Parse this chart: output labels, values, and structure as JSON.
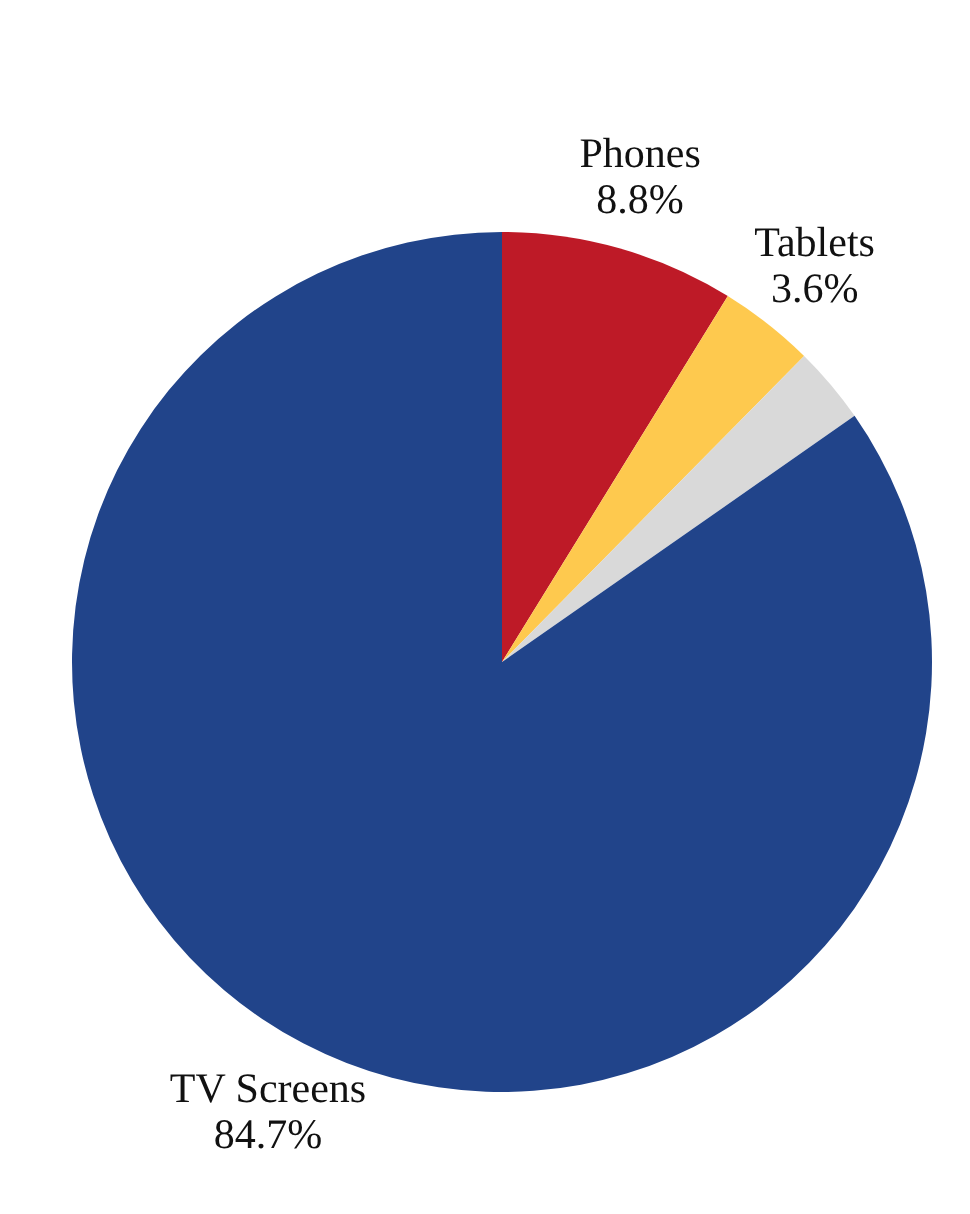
{
  "chart_data": {
    "type": "pie",
    "categories": [
      "Phones",
      "Tablets",
      null,
      "TV Screens"
    ],
    "values": [
      8.8,
      3.6,
      2.9,
      84.7
    ],
    "value_labels": [
      "8.8%",
      "3.6%",
      null,
      "84.7%"
    ],
    "colors": [
      "#be1a27",
      "#fec94e",
      "#d9d9d9",
      "#21448a"
    ],
    "legend": false
  }
}
